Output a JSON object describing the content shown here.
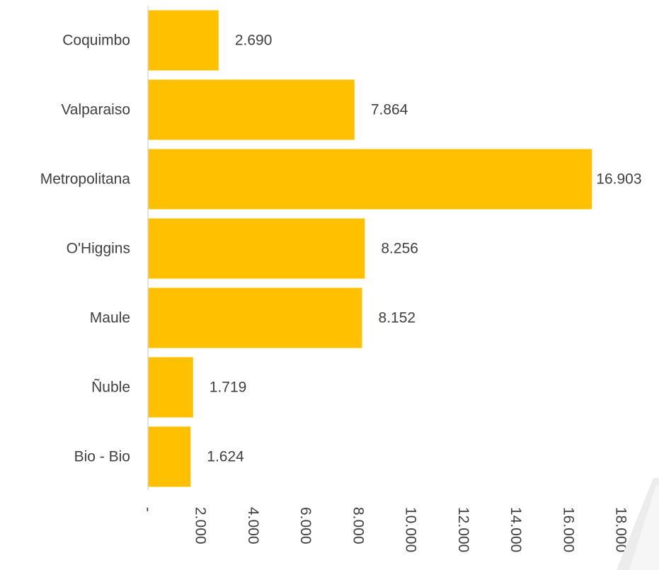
{
  "chart_data": {
    "type": "bar",
    "orientation": "horizontal",
    "categories": [
      "Coquimbo",
      "Valparaiso",
      "Metropolitana",
      "O'Higgins",
      "Maule",
      "Ñuble",
      "Bio - Bio"
    ],
    "values": [
      2690,
      7864,
      16903,
      8256,
      8152,
      1719,
      1624
    ],
    "value_labels": [
      "2.690",
      "7.864",
      "16.903",
      "8.256",
      "8.152",
      "1.719",
      "1.624"
    ],
    "xlim": [
      0,
      18000
    ],
    "x_ticks": [
      0,
      2000,
      4000,
      6000,
      8000,
      10000,
      12000,
      14000,
      16000,
      18000
    ],
    "x_tick_labels": [
      "-",
      "2.000",
      "4.000",
      "6.000",
      "8.000",
      "10.000",
      "12.000",
      "14.000",
      "16.000",
      "18.000"
    ],
    "title": "",
    "xlabel": "",
    "ylabel": "",
    "grid": false,
    "legend": "none",
    "bar_color": "#FFC000",
    "text_color": "#404040",
    "axis_color": "#D9D9D9"
  }
}
